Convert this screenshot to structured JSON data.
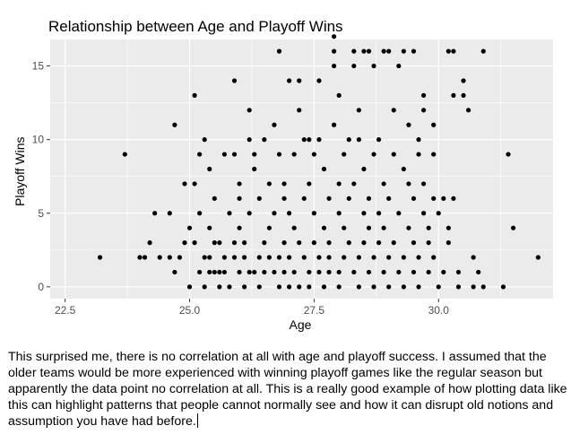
{
  "chart_data": {
    "type": "scatter",
    "title": "Relationship between Age and Playoff Wins",
    "xlabel": "Age",
    "ylabel": "Playoff Wins",
    "xlim": [
      22.2,
      32.3
    ],
    "ylim": [
      -0.8,
      16.8
    ],
    "x_ticks": [
      22.5,
      25.0,
      27.5,
      30.0
    ],
    "x_tick_labels": [
      "22.5",
      "25.0",
      "27.5",
      "30.0"
    ],
    "y_ticks": [
      0,
      5,
      10,
      15
    ],
    "y_tick_labels": [
      "0",
      "5",
      "10",
      "15"
    ],
    "grid": true,
    "panel_color": "#ebebeb",
    "grid_color": "#ffffff",
    "point_color": "#000000",
    "points": [
      [
        23.2,
        2
      ],
      [
        23.7,
        9
      ],
      [
        24.0,
        2
      ],
      [
        24.1,
        2
      ],
      [
        24.2,
        3
      ],
      [
        24.3,
        5
      ],
      [
        24.4,
        2
      ],
      [
        24.6,
        2
      ],
      [
        24.6,
        5
      ],
      [
        24.7,
        1
      ],
      [
        24.7,
        11
      ],
      [
        24.8,
        2
      ],
      [
        24.9,
        3
      ],
      [
        24.9,
        7
      ],
      [
        25.0,
        0
      ],
      [
        25.0,
        4
      ],
      [
        25.1,
        13
      ],
      [
        25.1,
        3
      ],
      [
        25.1,
        7
      ],
      [
        25.2,
        1
      ],
      [
        25.2,
        5
      ],
      [
        25.2,
        9
      ],
      [
        25.3,
        10
      ],
      [
        25.3,
        2
      ],
      [
        25.3,
        0
      ],
      [
        25.4,
        1
      ],
      [
        25.4,
        2
      ],
      [
        25.4,
        4
      ],
      [
        25.4,
        8
      ],
      [
        25.5,
        1
      ],
      [
        25.5,
        3
      ],
      [
        25.5,
        6
      ],
      [
        25.6,
        0
      ],
      [
        25.6,
        1
      ],
      [
        25.6,
        3
      ],
      [
        25.7,
        9
      ],
      [
        25.7,
        2
      ],
      [
        25.7,
        1
      ],
      [
        25.8,
        5
      ],
      [
        25.8,
        0
      ],
      [
        25.9,
        2
      ],
      [
        25.9,
        3
      ],
      [
        25.9,
        9
      ],
      [
        25.9,
        14
      ],
      [
        26.0,
        1
      ],
      [
        26.0,
        7
      ],
      [
        26.0,
        4
      ],
      [
        26.0,
        6
      ],
      [
        26.1,
        0
      ],
      [
        26.1,
        2
      ],
      [
        26.1,
        3
      ],
      [
        26.2,
        1
      ],
      [
        26.2,
        5
      ],
      [
        26.2,
        10
      ],
      [
        26.2,
        12
      ],
      [
        26.3,
        8
      ],
      [
        26.3,
        9
      ],
      [
        26.3,
        1
      ],
      [
        26.4,
        0
      ],
      [
        26.4,
        2
      ],
      [
        26.4,
        6
      ],
      [
        26.5,
        3
      ],
      [
        26.5,
        1
      ],
      [
        26.5,
        10
      ],
      [
        26.6,
        4
      ],
      [
        26.6,
        7
      ],
      [
        26.6,
        2
      ],
      [
        26.7,
        1
      ],
      [
        26.7,
        5
      ],
      [
        26.7,
        11
      ],
      [
        26.8,
        0
      ],
      [
        26.8,
        2
      ],
      [
        26.8,
        16
      ],
      [
        26.8,
        9
      ],
      [
        26.9,
        3
      ],
      [
        26.9,
        1
      ],
      [
        26.9,
        6
      ],
      [
        26.9,
        7
      ],
      [
        27.0,
        14
      ],
      [
        27.0,
        2
      ],
      [
        27.0,
        0
      ],
      [
        27.0,
        5
      ],
      [
        27.1,
        4
      ],
      [
        27.1,
        1
      ],
      [
        27.1,
        9
      ],
      [
        27.2,
        0
      ],
      [
        27.2,
        3
      ],
      [
        27.2,
        12
      ],
      [
        27.2,
        14
      ],
      [
        27.3,
        10
      ],
      [
        27.3,
        2
      ],
      [
        27.3,
        6
      ],
      [
        27.4,
        0
      ],
      [
        27.4,
        1
      ],
      [
        27.4,
        7
      ],
      [
        27.4,
        10
      ],
      [
        27.5,
        3
      ],
      [
        27.5,
        5
      ],
      [
        27.5,
        9
      ],
      [
        27.6,
        10
      ],
      [
        27.6,
        2
      ],
      [
        27.6,
        1
      ],
      [
        27.6,
        14
      ],
      [
        27.7,
        4
      ],
      [
        27.7,
        8
      ],
      [
        27.7,
        0
      ],
      [
        27.8,
        6
      ],
      [
        27.8,
        1
      ],
      [
        27.8,
        3
      ],
      [
        27.8,
        2
      ],
      [
        27.9,
        11
      ],
      [
        27.9,
        16
      ],
      [
        27.9,
        15
      ],
      [
        27.9,
        17
      ],
      [
        28.0,
        5
      ],
      [
        28.0,
        1
      ],
      [
        28.0,
        7
      ],
      [
        28.0,
        0
      ],
      [
        28.0,
        13
      ],
      [
        28.1,
        2
      ],
      [
        28.1,
        9
      ],
      [
        28.1,
        4
      ],
      [
        28.2,
        3
      ],
      [
        28.2,
        10
      ],
      [
        28.2,
        6
      ],
      [
        28.3,
        16
      ],
      [
        28.3,
        15
      ],
      [
        28.3,
        1
      ],
      [
        28.3,
        7
      ],
      [
        28.4,
        0
      ],
      [
        28.4,
        2
      ],
      [
        28.4,
        10
      ],
      [
        28.4,
        12
      ],
      [
        28.5,
        5
      ],
      [
        28.5,
        16
      ],
      [
        28.5,
        3
      ],
      [
        28.5,
        8
      ],
      [
        28.6,
        4
      ],
      [
        28.6,
        1
      ],
      [
        28.6,
        16
      ],
      [
        28.6,
        6
      ],
      [
        28.7,
        9
      ],
      [
        28.7,
        2
      ],
      [
        28.7,
        15
      ],
      [
        28.7,
        0
      ],
      [
        28.8,
        5
      ],
      [
        28.8,
        3
      ],
      [
        28.8,
        10
      ],
      [
        28.9,
        7
      ],
      [
        28.9,
        1
      ],
      [
        28.9,
        4
      ],
      [
        28.9,
        16
      ],
      [
        29.0,
        6
      ],
      [
        29.0,
        2
      ],
      [
        29.0,
        0
      ],
      [
        29.0,
        16
      ],
      [
        29.1,
        9
      ],
      [
        29.1,
        3
      ],
      [
        29.1,
        12
      ],
      [
        29.2,
        5
      ],
      [
        29.2,
        1
      ],
      [
        29.2,
        15
      ],
      [
        29.3,
        8
      ],
      [
        29.3,
        2
      ],
      [
        29.3,
        0
      ],
      [
        29.3,
        16
      ],
      [
        29.4,
        4
      ],
      [
        29.4,
        7
      ],
      [
        29.4,
        11
      ],
      [
        29.5,
        6
      ],
      [
        29.5,
        1
      ],
      [
        29.5,
        3
      ],
      [
        29.5,
        16
      ],
      [
        29.6,
        10
      ],
      [
        29.6,
        2
      ],
      [
        29.6,
        9
      ],
      [
        29.6,
        0
      ],
      [
        29.7,
        7
      ],
      [
        29.7,
        5
      ],
      [
        29.7,
        13
      ],
      [
        29.7,
        12
      ],
      [
        29.8,
        4
      ],
      [
        29.8,
        1
      ],
      [
        29.8,
        3
      ],
      [
        29.9,
        6
      ],
      [
        29.9,
        2
      ],
      [
        29.9,
        9
      ],
      [
        29.9,
        11
      ],
      [
        30.0,
        0
      ],
      [
        30.0,
        5
      ],
      [
        30.1,
        6
      ],
      [
        30.1,
        1
      ],
      [
        30.2,
        3
      ],
      [
        30.2,
        16
      ],
      [
        30.2,
        4
      ],
      [
        30.3,
        16
      ],
      [
        30.3,
        6
      ],
      [
        30.3,
        13
      ],
      [
        30.4,
        1
      ],
      [
        30.4,
        0
      ],
      [
        30.5,
        13
      ],
      [
        30.5,
        14
      ],
      [
        30.6,
        12
      ],
      [
        30.7,
        2
      ],
      [
        30.7,
        0
      ],
      [
        30.8,
        1
      ],
      [
        30.9,
        0
      ],
      [
        30.9,
        16
      ],
      [
        31.3,
        0
      ],
      [
        31.4,
        9
      ],
      [
        31.5,
        4
      ],
      [
        32.0,
        2
      ]
    ]
  },
  "paragraph": {
    "text": "This surprised me, there is no correlation at all with age and playoff success. I assumed that the older teams would be more experienced with winning playoff games like the regular season but apparently the data point no correlation at all. This is a really good example of how plotting data like this can highlight patterns that people cannot normally see and how it can disrupt old notions and assumption you have had before."
  }
}
